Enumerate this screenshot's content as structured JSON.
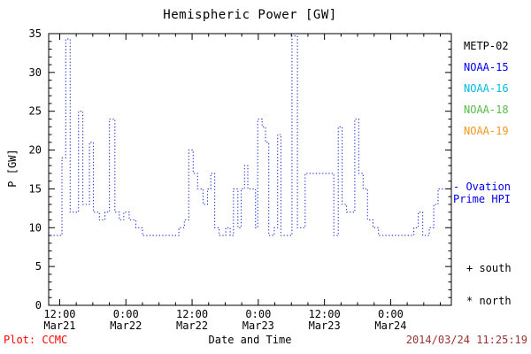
{
  "chart_data": {
    "type": "line",
    "title": "Hemispheric Power [GW]",
    "xlabel": "Date and Time",
    "ylabel": "P [GW]",
    "x_hours_from": "Mar21 00:00",
    "xlim": [
      10,
      83
    ],
    "ylim": [
      0,
      35
    ],
    "grid": false,
    "line_style": "dotted-step",
    "axis_color": "#000000",
    "y_ticks": [
      0,
      5,
      10,
      15,
      20,
      25,
      30,
      35
    ],
    "x_ticks": [
      {
        "pos": 12,
        "time": "12:00",
        "date": "Mar21"
      },
      {
        "pos": 24,
        "time": "0:00",
        "date": "Mar22"
      },
      {
        "pos": 36,
        "time": "12:00",
        "date": "Mar22"
      },
      {
        "pos": 48,
        "time": "0:00",
        "date": "Mar23"
      },
      {
        "pos": 60,
        "time": "12:00",
        "date": "Mar23"
      },
      {
        "pos": 72,
        "time": "0:00",
        "date": "Mar24"
      }
    ],
    "series": [
      {
        "name": "Ovation Prime HPI",
        "color": "#2233cc",
        "points": [
          [
            10.3,
            9
          ],
          [
            12.2,
            9
          ],
          [
            12.4,
            19
          ],
          [
            12.9,
            19
          ],
          [
            13.1,
            34.3
          ],
          [
            13.7,
            34.3
          ],
          [
            13.9,
            12
          ],
          [
            15.2,
            12
          ],
          [
            15.4,
            25
          ],
          [
            16.0,
            25
          ],
          [
            16.2,
            13
          ],
          [
            17.2,
            13
          ],
          [
            17.4,
            21
          ],
          [
            17.9,
            21
          ],
          [
            18.1,
            12
          ],
          [
            19.0,
            12
          ],
          [
            19.2,
            11
          ],
          [
            20.0,
            11
          ],
          [
            20.2,
            12
          ],
          [
            20.8,
            12
          ],
          [
            21.0,
            24
          ],
          [
            21.8,
            24
          ],
          [
            22.0,
            12
          ],
          [
            22.6,
            12
          ],
          [
            22.8,
            11
          ],
          [
            23.4,
            11
          ],
          [
            23.6,
            12
          ],
          [
            24.4,
            12
          ],
          [
            24.6,
            11
          ],
          [
            25.6,
            11
          ],
          [
            25.8,
            10
          ],
          [
            26.8,
            10
          ],
          [
            27.0,
            9
          ],
          [
            33.4,
            9
          ],
          [
            33.6,
            10
          ],
          [
            34.4,
            10
          ],
          [
            34.6,
            11
          ],
          [
            35.2,
            11
          ],
          [
            35.4,
            20
          ],
          [
            36.0,
            20
          ],
          [
            36.2,
            17
          ],
          [
            36.8,
            17
          ],
          [
            37.0,
            15
          ],
          [
            37.8,
            15
          ],
          [
            38.0,
            13
          ],
          [
            38.6,
            13
          ],
          [
            38.8,
            15
          ],
          [
            39.2,
            15
          ],
          [
            39.4,
            17
          ],
          [
            39.9,
            17
          ],
          [
            40.1,
            10
          ],
          [
            40.7,
            10
          ],
          [
            40.9,
            9
          ],
          [
            41.9,
            9
          ],
          [
            42.1,
            10
          ],
          [
            42.7,
            10
          ],
          [
            42.9,
            9
          ],
          [
            43.3,
            9
          ],
          [
            43.5,
            15
          ],
          [
            44.1,
            15
          ],
          [
            44.3,
            10
          ],
          [
            44.7,
            10
          ],
          [
            44.9,
            15
          ],
          [
            45.3,
            15
          ],
          [
            45.5,
            18
          ],
          [
            45.9,
            18
          ],
          [
            46.1,
            15
          ],
          [
            47.3,
            15
          ],
          [
            47.5,
            10
          ],
          [
            47.7,
            10
          ],
          [
            47.9,
            24
          ],
          [
            48.5,
            24
          ],
          [
            48.7,
            23
          ],
          [
            49.1,
            23
          ],
          [
            49.3,
            21
          ],
          [
            49.7,
            21
          ],
          [
            49.9,
            9
          ],
          [
            50.7,
            9
          ],
          [
            50.9,
            10
          ],
          [
            51.3,
            10
          ],
          [
            51.5,
            22
          ],
          [
            51.9,
            22
          ],
          [
            52.1,
            9
          ],
          [
            53.9,
            9
          ],
          [
            54.1,
            34.7
          ],
          [
            54.9,
            34.7
          ],
          [
            55.1,
            10
          ],
          [
            56.3,
            10
          ],
          [
            56.5,
            17
          ],
          [
            61.5,
            17
          ],
          [
            61.7,
            9
          ],
          [
            62.3,
            9
          ],
          [
            62.5,
            23
          ],
          [
            63.0,
            23
          ],
          [
            63.2,
            13
          ],
          [
            63.8,
            13
          ],
          [
            64.0,
            12
          ],
          [
            65.3,
            12
          ],
          [
            65.5,
            24
          ],
          [
            66.0,
            24
          ],
          [
            66.2,
            17
          ],
          [
            66.8,
            17
          ],
          [
            67.0,
            15
          ],
          [
            67.6,
            15
          ],
          [
            67.8,
            11
          ],
          [
            68.6,
            11
          ],
          [
            68.8,
            10
          ],
          [
            69.6,
            10
          ],
          [
            69.8,
            9
          ],
          [
            76.0,
            9
          ],
          [
            76.2,
            10
          ],
          [
            76.8,
            10
          ],
          [
            77.0,
            12
          ],
          [
            77.6,
            12
          ],
          [
            77.8,
            9
          ],
          [
            78.8,
            9
          ],
          [
            79.0,
            10
          ],
          [
            79.6,
            10
          ],
          [
            79.8,
            13
          ],
          [
            80.4,
            13
          ],
          [
            80.6,
            15
          ],
          [
            82.5,
            15
          ]
        ]
      }
    ]
  },
  "legend": {
    "satellites": [
      {
        "label": "METP-02",
        "color": "#000000"
      },
      {
        "label": "NOAA-15",
        "color": "#0000ee"
      },
      {
        "label": "NOAA-16",
        "color": "#00bbdd"
      },
      {
        "label": "NOAA-18",
        "color": "#55bb44"
      },
      {
        "label": "NOAA-19",
        "color": "#ee9922"
      }
    ],
    "ovation_lines": [
      "- Ovation",
      "Prime HPI"
    ],
    "ovation_color": "#0000ee",
    "south_label": "+ south",
    "north_label": "* north"
  },
  "footer": {
    "credit": "Plot: CCMC",
    "credit_color": "#ff0000",
    "timestamp": "2014/03/24 11:25:19",
    "timestamp_color": "#993333"
  }
}
